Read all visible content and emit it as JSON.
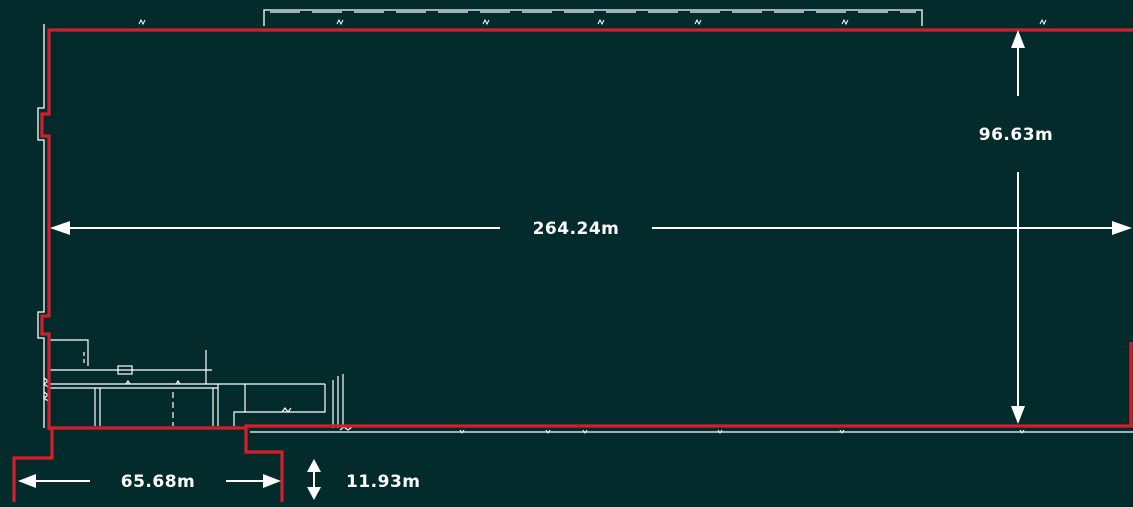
{
  "colors": {
    "background": "#042b2c",
    "boundary": "#d11f2c",
    "lines": "#ffffff"
  },
  "dimensions": {
    "length": "264.24m",
    "depth": "96.63m",
    "annex_width": "65.68m",
    "annex_depth": "11.93m"
  }
}
